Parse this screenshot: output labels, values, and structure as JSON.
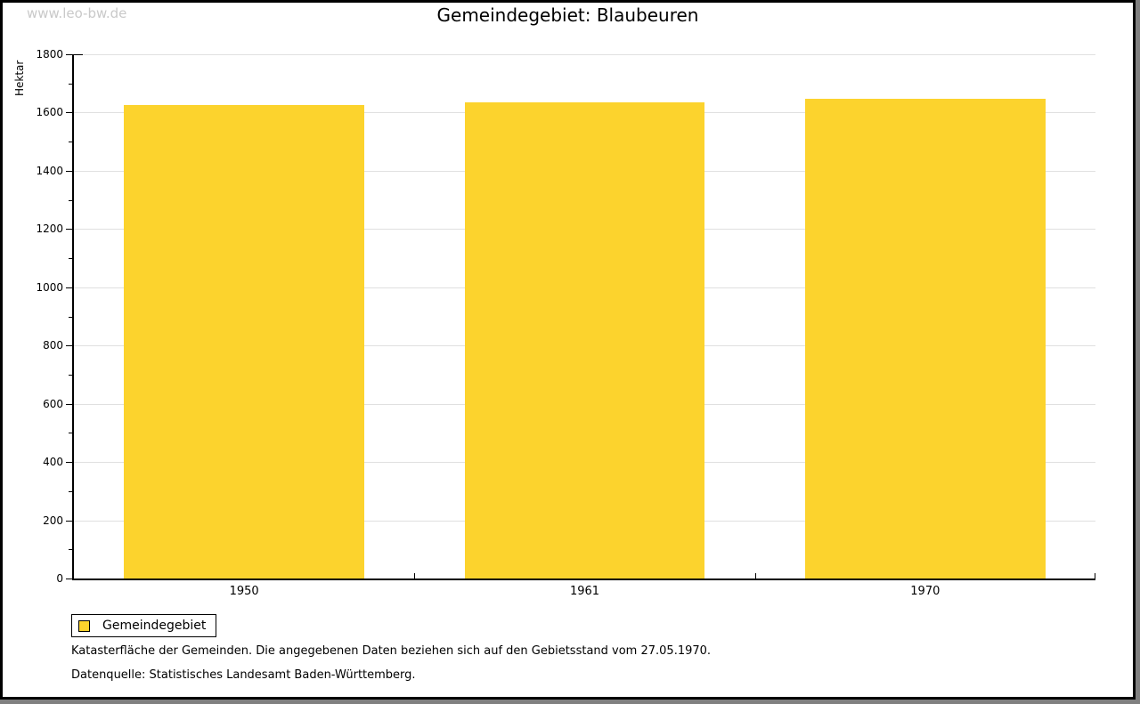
{
  "watermark": "www.leo-bw.de",
  "header": {
    "title": "Gemeindegebiet: Blaubeuren"
  },
  "chart_data": {
    "type": "bar",
    "title": "Gemeindegebiet: Blaubeuren",
    "categories": [
      "1950",
      "1961",
      "1970"
    ],
    "series": [
      {
        "name": "Gemeindegebiet",
        "values": [
          1625,
          1634,
          1648
        ]
      }
    ],
    "xlabel": "",
    "ylabel": "Hektar",
    "ylim": [
      0,
      1800
    ],
    "ytick_step": 200,
    "ytick_minor_step": 100,
    "grid": "horizontal-major",
    "legend_position": "bottom-left",
    "bar_width_fraction": 0.705
  },
  "legend": {
    "items": [
      {
        "label": "Gemeindegebiet",
        "color": "#fcd32d"
      }
    ]
  },
  "footnotes": [
    "Katasterfläche der Gemeinden. Die angegebenen Daten beziehen sich auf den Gebietsstand vom 27.05.1970.",
    "Datenquelle: Statistisches Landesamt Baden-Württemberg."
  ],
  "colors": {
    "bar": "#fcd32d",
    "axis": "#000000",
    "gridline": "#e0e0e0",
    "watermark": "#c9c9c9",
    "shadow": "#808080",
    "background": "#ffffff"
  }
}
